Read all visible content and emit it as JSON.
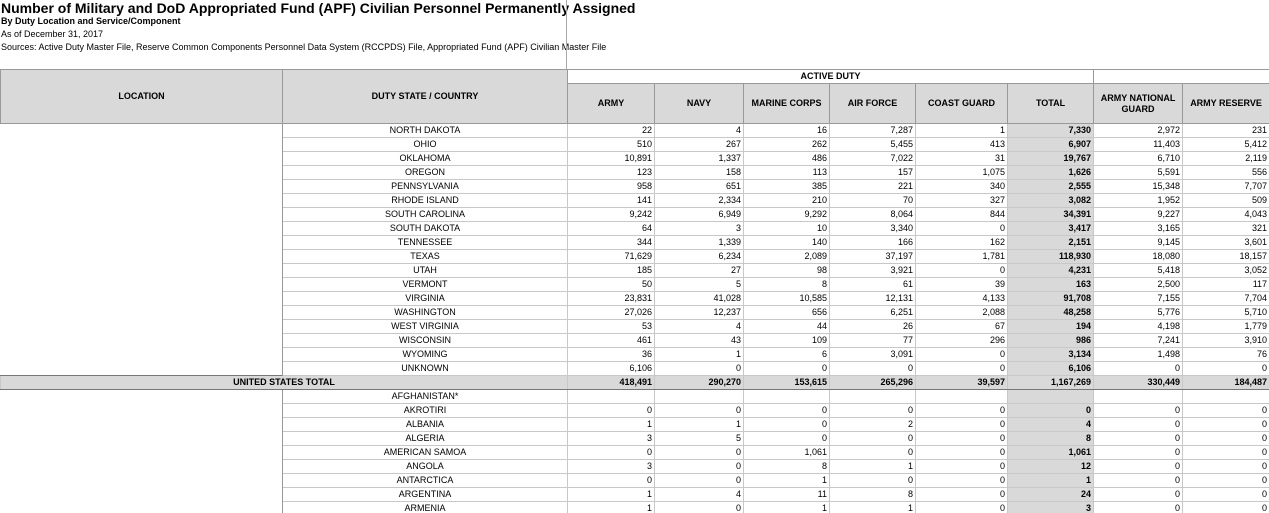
{
  "header": {
    "title": "Number of Military and DoD Appropriated Fund (APF) Civilian Personnel Permanently Assigned",
    "subtitle": "By Duty Location and Service/Component",
    "as_of": "As of December 31, 2017",
    "sources": "Sources: Active Duty Master File, Reserve Common Components Personnel Data System (RCCPDS) File, Appropriated Fund (APF) Civilian Master File"
  },
  "table": {
    "group_header": "ACTIVE DUTY",
    "columns": [
      "LOCATION",
      "DUTY STATE / COUNTRY",
      "ARMY",
      "NAVY",
      "MARINE CORPS",
      "AIR FORCE",
      "COAST GUARD",
      "TOTAL",
      "ARMY NATIONAL GUARD",
      "ARMY RESERVE"
    ],
    "rows": [
      {
        "state": "NORTH DAKOTA",
        "values": [
          "22",
          "4",
          "16",
          "7,287",
          "1",
          "7,330",
          "2,972",
          "231"
        ]
      },
      {
        "state": "OHIO",
        "values": [
          "510",
          "267",
          "262",
          "5,455",
          "413",
          "6,907",
          "11,403",
          "5,412"
        ]
      },
      {
        "state": "OKLAHOMA",
        "values": [
          "10,891",
          "1,337",
          "486",
          "7,022",
          "31",
          "19,767",
          "6,710",
          "2,119"
        ]
      },
      {
        "state": "OREGON",
        "values": [
          "123",
          "158",
          "113",
          "157",
          "1,075",
          "1,626",
          "5,591",
          "556"
        ]
      },
      {
        "state": "PENNSYLVANIA",
        "values": [
          "958",
          "651",
          "385",
          "221",
          "340",
          "2,555",
          "15,348",
          "7,707"
        ]
      },
      {
        "state": "RHODE ISLAND",
        "values": [
          "141",
          "2,334",
          "210",
          "70",
          "327",
          "3,082",
          "1,952",
          "509"
        ]
      },
      {
        "state": "SOUTH CAROLINA",
        "values": [
          "9,242",
          "6,949",
          "9,292",
          "8,064",
          "844",
          "34,391",
          "9,227",
          "4,043"
        ]
      },
      {
        "state": "SOUTH DAKOTA",
        "values": [
          "64",
          "3",
          "10",
          "3,340",
          "0",
          "3,417",
          "3,165",
          "321"
        ]
      },
      {
        "state": "TENNESSEE",
        "values": [
          "344",
          "1,339",
          "140",
          "166",
          "162",
          "2,151",
          "9,145",
          "3,601"
        ]
      },
      {
        "state": "TEXAS",
        "values": [
          "71,629",
          "6,234",
          "2,089",
          "37,197",
          "1,781",
          "118,930",
          "18,080",
          "18,157"
        ]
      },
      {
        "state": "UTAH",
        "values": [
          "185",
          "27",
          "98",
          "3,921",
          "0",
          "4,231",
          "5,418",
          "3,052"
        ]
      },
      {
        "state": "VERMONT",
        "values": [
          "50",
          "5",
          "8",
          "61",
          "39",
          "163",
          "2,500",
          "117"
        ]
      },
      {
        "state": "VIRGINIA",
        "values": [
          "23,831",
          "41,028",
          "10,585",
          "12,131",
          "4,133",
          "91,708",
          "7,155",
          "7,704"
        ]
      },
      {
        "state": "WASHINGTON",
        "values": [
          "27,026",
          "12,237",
          "656",
          "6,251",
          "2,088",
          "48,258",
          "5,776",
          "5,710"
        ]
      },
      {
        "state": "WEST VIRGINIA",
        "values": [
          "53",
          "4",
          "44",
          "26",
          "67",
          "194",
          "4,198",
          "1,779"
        ]
      },
      {
        "state": "WISCONSIN",
        "values": [
          "461",
          "43",
          "109",
          "77",
          "296",
          "986",
          "7,241",
          "3,910"
        ]
      },
      {
        "state": "WYOMING",
        "values": [
          "36",
          "1",
          "6",
          "3,091",
          "0",
          "3,134",
          "1,498",
          "76"
        ]
      },
      {
        "state": "UNKNOWN",
        "values": [
          "6,106",
          "0",
          "0",
          "0",
          "0",
          "6,106",
          "0",
          "0"
        ]
      },
      {
        "location": "UNITED STATES TOTAL",
        "values": [
          "418,491",
          "290,270",
          "153,615",
          "265,296",
          "39,597",
          "1,167,269",
          "330,449",
          "184,487"
        ]
      },
      {
        "state": "AFGHANISTAN*"
      },
      {
        "state": "AKROTIRI",
        "values": [
          "0",
          "0",
          "0",
          "0",
          "0",
          "0",
          "0",
          "0"
        ]
      },
      {
        "state": "ALBANIA",
        "values": [
          "1",
          "1",
          "0",
          "2",
          "0",
          "4",
          "0",
          "0"
        ]
      },
      {
        "state": "ALGERIA",
        "values": [
          "3",
          "5",
          "0",
          "0",
          "0",
          "8",
          "0",
          "0"
        ]
      },
      {
        "state": "AMERICAN SAMOA",
        "values": [
          "0",
          "0",
          "1,061",
          "0",
          "0",
          "1,061",
          "0",
          "0"
        ]
      },
      {
        "state": "ANGOLA",
        "values": [
          "3",
          "0",
          "8",
          "1",
          "0",
          "12",
          "0",
          "0"
        ]
      },
      {
        "state": "ANTARCTICA",
        "values": [
          "0",
          "0",
          "1",
          "0",
          "0",
          "1",
          "0",
          "0"
        ]
      },
      {
        "state": "ARGENTINA",
        "values": [
          "1",
          "4",
          "11",
          "8",
          "0",
          "24",
          "0",
          "0"
        ]
      },
      {
        "state": "ARMENIA",
        "values": [
          "1",
          "0",
          "1",
          "1",
          "0",
          "3",
          "0",
          "0"
        ]
      }
    ]
  }
}
